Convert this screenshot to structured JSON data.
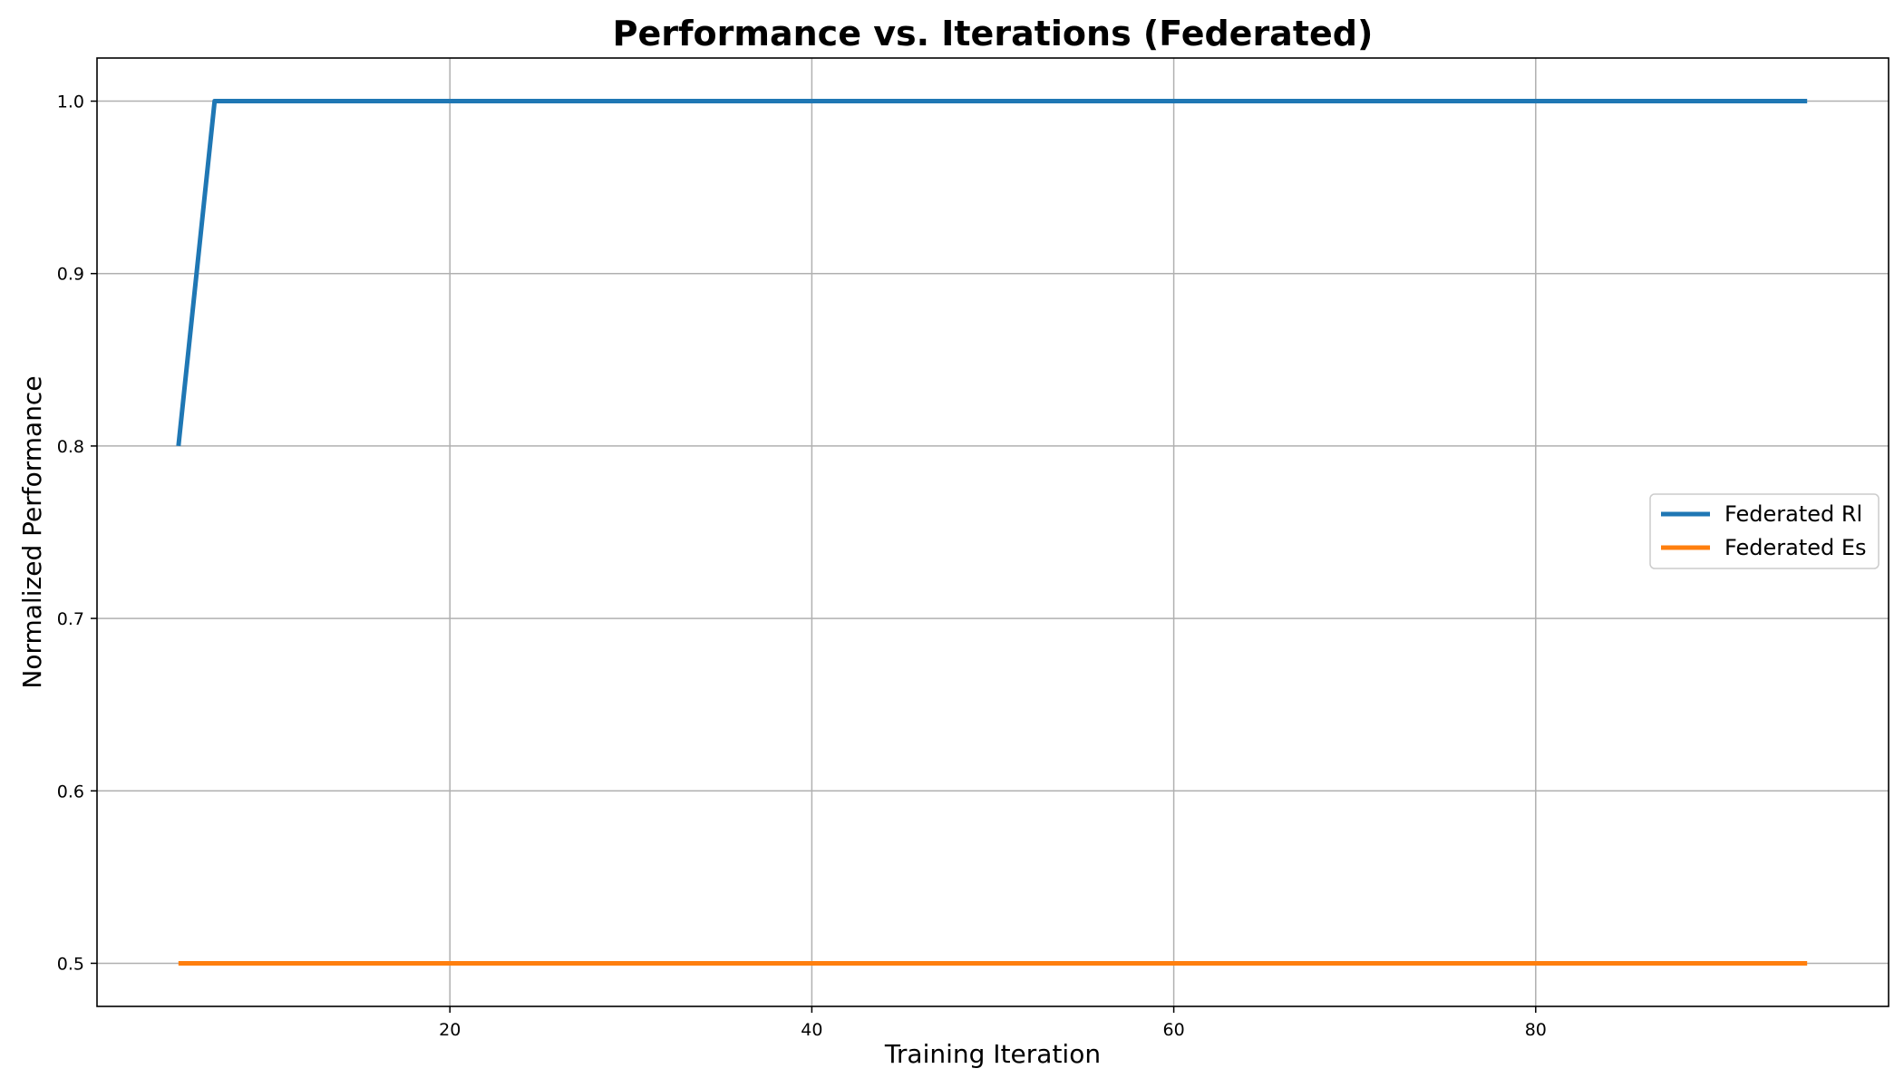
{
  "chart_data": {
    "type": "line",
    "title": "Performance vs. Iterations (Federated)",
    "xlabel": "Training Iteration",
    "ylabel": "Normalized Performance",
    "xlim": [
      0.5,
      99.5
    ],
    "ylim": [
      0.475,
      1.025
    ],
    "xticks": [
      20,
      40,
      60,
      80
    ],
    "yticks": [
      0.5,
      0.6,
      0.7,
      0.8,
      0.9,
      1.0
    ],
    "ytick_labels": [
      "0.5",
      "0.6",
      "0.7",
      "0.8",
      "0.9",
      "1.0"
    ],
    "xtick_labels": [
      "20",
      "40",
      "60",
      "80"
    ],
    "grid": true,
    "legend_position": "center-right",
    "series": [
      {
        "name": "Federated Rl",
        "color": "#1f77b4",
        "x": [
          5,
          7,
          95
        ],
        "y": [
          0.8,
          1.0,
          1.0
        ]
      },
      {
        "name": "Federated Es",
        "color": "#ff7f0e",
        "x": [
          5,
          95
        ],
        "y": [
          0.5,
          0.5
        ]
      }
    ]
  }
}
